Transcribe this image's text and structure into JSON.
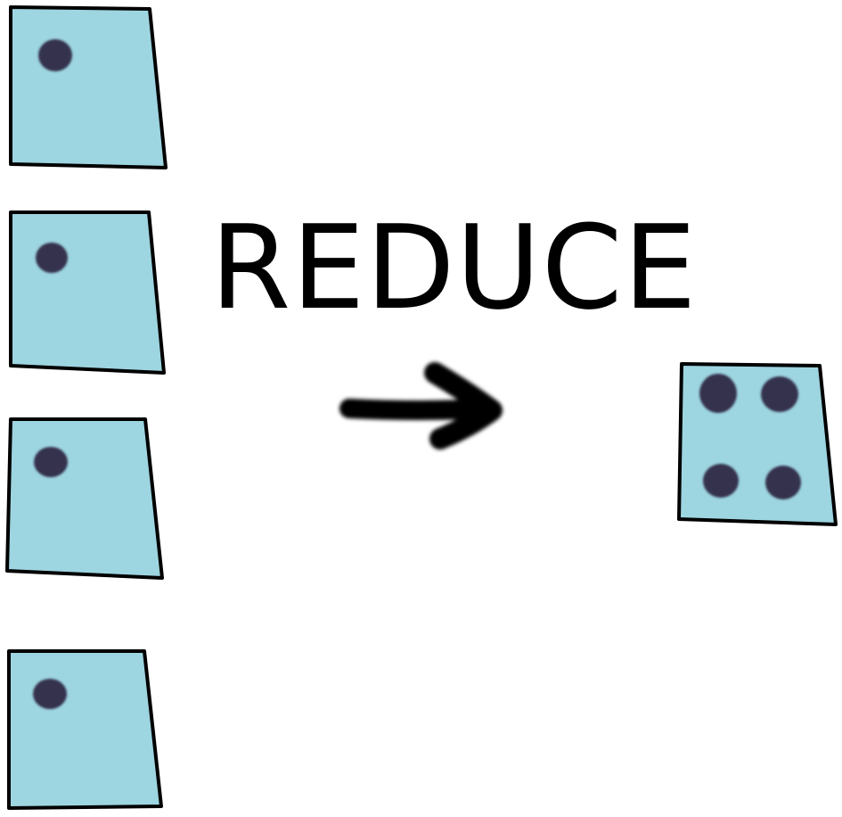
{
  "label": "REDUCE",
  "colors": {
    "card_fill": "#9dd5e0",
    "card_stroke": "#000000",
    "dot": "#35324d",
    "arrow": "#000000",
    "text": "#000000"
  },
  "input_cards": [
    {
      "dots": 1
    },
    {
      "dots": 1
    },
    {
      "dots": 1
    },
    {
      "dots": 1
    }
  ],
  "output_card": {
    "dots": 4
  },
  "icons": {
    "arrow": "right-arrow-icon"
  }
}
